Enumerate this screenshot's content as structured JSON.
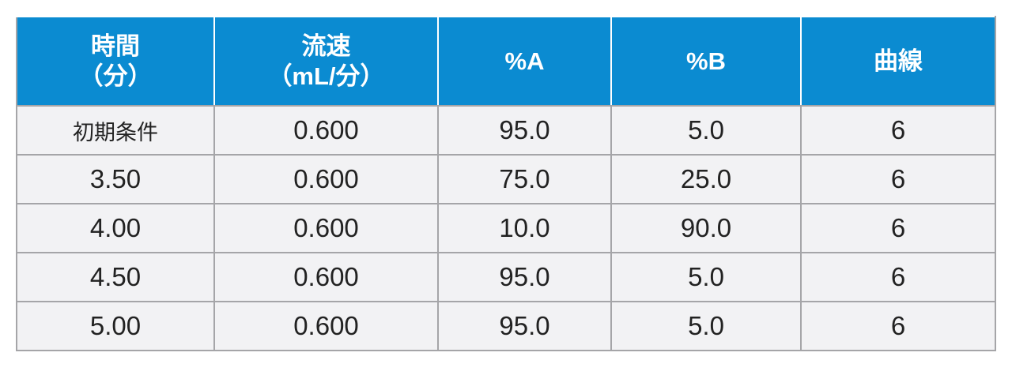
{
  "table": {
    "header": [
      [
        "時間",
        "（分）"
      ],
      [
        "流速",
        "（mL/分）"
      ],
      [
        "%A"
      ],
      [
        "%B"
      ],
      [
        "曲線"
      ]
    ],
    "rows": [
      [
        "初期条件",
        "0.600",
        "95.0",
        "5.0",
        "6"
      ],
      [
        "3.50",
        "0.600",
        "75.0",
        "25.0",
        "6"
      ],
      [
        "4.00",
        "0.600",
        "10.0",
        "90.0",
        "6"
      ],
      [
        "4.50",
        "0.600",
        "95.0",
        "5.0",
        "6"
      ],
      [
        "5.00",
        "0.600",
        "95.0",
        "5.0",
        "6"
      ]
    ]
  }
}
